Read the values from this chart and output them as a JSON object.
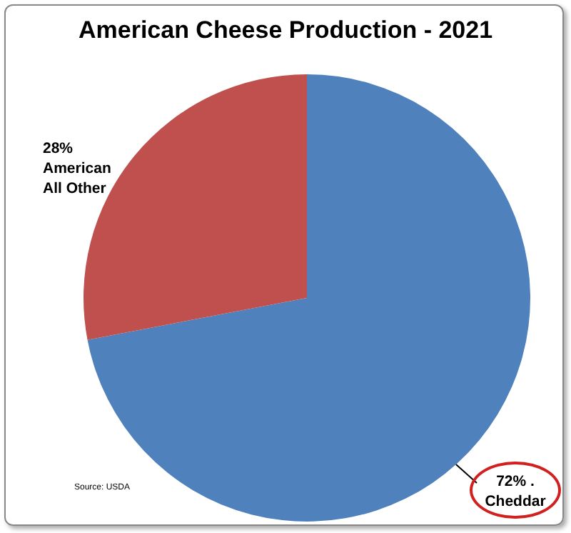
{
  "chart_data": {
    "type": "pie",
    "title": "American Cheese Production - 2021",
    "categories": [
      "Cheddar",
      "American All Other"
    ],
    "values": [
      72,
      28
    ],
    "value_labels": [
      "72% .",
      "28%"
    ],
    "colors": [
      "#4f81bd",
      "#c0504d"
    ],
    "legend": false,
    "annotations": [
      "Source: USDA"
    ]
  }
}
